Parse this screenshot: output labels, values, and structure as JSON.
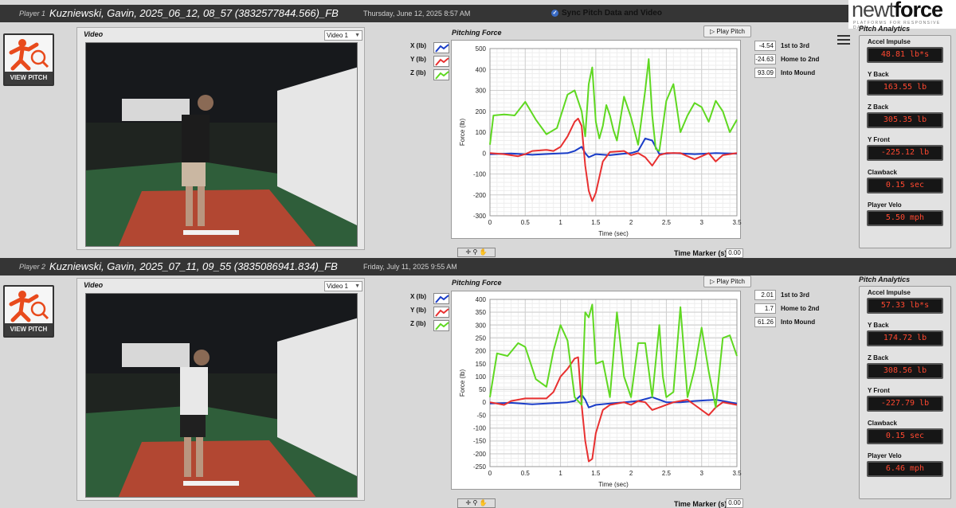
{
  "header": {
    "sync_label": "Sync Pitch Data and Video",
    "logo_text_a": "newt",
    "logo_text_b": "force",
    "logo_sub": "PLATFORMS FOR RESPONSIVE DATA"
  },
  "players": [
    {
      "player_label": "Player 1",
      "name": "Kuzniewski, Gavin, 2025_06_12, 08_57 (3832577844.566)_FB",
      "date": "Thursday, June 12, 2025 8:57 AM",
      "view_pitch": "VIEW PITCH",
      "video_title": "Video",
      "video_select": "Video 1",
      "chart_title": "Pitching Force",
      "play_pitch": "Play Pitch",
      "legend": [
        {
          "label": "X (lb)",
          "color": "#1a3dc8"
        },
        {
          "label": "Y (lb)",
          "color": "#e83030"
        },
        {
          "label": "Z (lb)",
          "color": "#5fd821"
        }
      ],
      "time_marker_label": "Time Marker (s)",
      "time_marker": "0.00",
      "readings": [
        {
          "value": "-4.54",
          "label": "1st to 3rd"
        },
        {
          "value": "-24.63",
          "label": "Home to 2nd"
        },
        {
          "value": "93.09",
          "label": "Into Mound"
        }
      ],
      "analytics_title": "Pitch Analytics",
      "analytics": [
        {
          "name": "Accel Impulse",
          "value": "48.81 lb*s"
        },
        {
          "name": "Y Back",
          "value": "163.55 lb"
        },
        {
          "name": "Z Back",
          "value": "305.35 lb"
        },
        {
          "name": "Y Front",
          "value": "-225.12 lb"
        },
        {
          "name": "Clawback",
          "value": "0.15 sec"
        },
        {
          "name": "Player Velo",
          "value": "5.50 mph"
        }
      ]
    },
    {
      "player_label": "Player 2",
      "name": "Kuzniewski, Gavin, 2025_07_11, 09_55 (3835086941.834)_FB",
      "date": "Friday, July 11, 2025 9:55 AM",
      "view_pitch": "VIEW PITCH",
      "video_title": "Video",
      "video_select": "Video 1",
      "chart_title": "Pitching Force",
      "play_pitch": "Play Pitch",
      "legend": [
        {
          "label": "X (lb)",
          "color": "#1a3dc8"
        },
        {
          "label": "Y (lb)",
          "color": "#e83030"
        },
        {
          "label": "Z (lb)",
          "color": "#5fd821"
        }
      ],
      "time_marker_label": "Time Marker (s)",
      "time_marker": "0.00",
      "readings": [
        {
          "value": "2.01",
          "label": "1st to 3rd"
        },
        {
          "value": "1.7",
          "label": "Home to 2nd"
        },
        {
          "value": "61.26",
          "label": "Into Mound"
        }
      ],
      "analytics_title": "Pitch Analytics",
      "analytics": [
        {
          "name": "Accel Impulse",
          "value": "57.33 lb*s"
        },
        {
          "name": "Y Back",
          "value": "174.72 lb"
        },
        {
          "name": "Z Back",
          "value": "308.56 lb"
        },
        {
          "name": "Y Front",
          "value": "-227.79 lb"
        },
        {
          "name": "Clawback",
          "value": "0.15 sec"
        },
        {
          "name": "Player Velo",
          "value": "6.46 mph"
        }
      ]
    }
  ],
  "chart_data": [
    {
      "type": "line",
      "title": "Pitching Force",
      "xlabel": "Time (sec)",
      "ylabel": "Force (lb)",
      "xlim": [
        0,
        3.5
      ],
      "ylim": [
        -300,
        500
      ],
      "xticks": [
        0,
        0.5,
        1,
        1.5,
        2,
        2.5,
        3,
        3.5
      ],
      "yticks": [
        -300,
        -200,
        -100,
        0,
        100,
        200,
        300,
        400,
        500
      ],
      "grid": true,
      "series": [
        {
          "name": "X (lb)",
          "color": "#1a3dc8",
          "x": [
            0,
            0.3,
            0.6,
            0.9,
            1.1,
            1.2,
            1.3,
            1.35,
            1.4,
            1.5,
            1.7,
            1.9,
            2.0,
            2.1,
            2.2,
            2.3,
            2.4,
            2.6,
            2.9,
            3.2,
            3.5
          ],
          "y": [
            -5,
            -2,
            -8,
            -3,
            0,
            10,
            30,
            0,
            -20,
            -5,
            -10,
            -3,
            0,
            10,
            70,
            60,
            -5,
            0,
            -5,
            0,
            -3
          ]
        },
        {
          "name": "Y (lb)",
          "color": "#e83030",
          "x": [
            0,
            0.2,
            0.4,
            0.5,
            0.6,
            0.8,
            0.9,
            1.0,
            1.1,
            1.2,
            1.25,
            1.3,
            1.35,
            1.4,
            1.45,
            1.5,
            1.6,
            1.7,
            1.9,
            2.0,
            2.1,
            2.2,
            2.3,
            2.4,
            2.5,
            2.7,
            2.9,
            3.1,
            3.2,
            3.3,
            3.5
          ],
          "y": [
            0,
            -5,
            -15,
            -5,
            10,
            15,
            10,
            30,
            80,
            150,
            165,
            130,
            -60,
            -180,
            -230,
            -190,
            -40,
            5,
            10,
            -10,
            0,
            -20,
            -60,
            -10,
            0,
            0,
            -30,
            0,
            -40,
            -10,
            0
          ]
        },
        {
          "name": "Z (lb)",
          "color": "#5fd821",
          "x": [
            0,
            0.05,
            0.2,
            0.35,
            0.5,
            0.65,
            0.8,
            0.95,
            1.1,
            1.2,
            1.3,
            1.35,
            1.4,
            1.45,
            1.5,
            1.55,
            1.6,
            1.65,
            1.7,
            1.75,
            1.8,
            1.9,
            2.0,
            2.1,
            2.2,
            2.25,
            2.3,
            2.35,
            2.4,
            2.5,
            2.6,
            2.7,
            2.8,
            2.9,
            3.0,
            3.1,
            3.2,
            3.3,
            3.4,
            3.5
          ],
          "y": [
            40,
            180,
            185,
            180,
            245,
            160,
            90,
            120,
            280,
            300,
            200,
            80,
            330,
            410,
            150,
            70,
            130,
            230,
            180,
            110,
            60,
            270,
            170,
            40,
            300,
            450,
            180,
            20,
            10,
            250,
            330,
            100,
            180,
            240,
            220,
            150,
            250,
            200,
            100,
            160
          ]
        }
      ]
    },
    {
      "type": "line",
      "title": "Pitching Force",
      "xlabel": "Time (sec)",
      "ylabel": "Force (lb)",
      "xlim": [
        0,
        3.5
      ],
      "ylim": [
        -250,
        400
      ],
      "xticks": [
        0,
        0.5,
        1,
        1.5,
        2,
        2.5,
        3,
        3.5
      ],
      "yticks": [
        -250,
        -200,
        -150,
        -100,
        -50,
        0,
        50,
        100,
        150,
        200,
        250,
        300,
        350,
        400
      ],
      "grid": true,
      "series": [
        {
          "name": "X (lb)",
          "color": "#1a3dc8",
          "x": [
            0,
            0.3,
            0.6,
            0.9,
            1.1,
            1.2,
            1.3,
            1.35,
            1.4,
            1.5,
            1.7,
            1.9,
            2.1,
            2.3,
            2.5,
            2.7,
            2.9,
            3.2,
            3.5
          ],
          "y": [
            -5,
            -2,
            -8,
            -3,
            0,
            5,
            30,
            10,
            -20,
            -10,
            -5,
            0,
            5,
            20,
            0,
            0,
            5,
            10,
            -5
          ]
        },
        {
          "name": "Y (lb)",
          "color": "#e83030",
          "x": [
            0,
            0.2,
            0.3,
            0.5,
            0.8,
            0.9,
            1.0,
            1.1,
            1.2,
            1.25,
            1.3,
            1.35,
            1.4,
            1.45,
            1.5,
            1.6,
            1.7,
            1.9,
            2.0,
            2.1,
            2.2,
            2.3,
            2.4,
            2.6,
            2.8,
            2.9,
            3.0,
            3.1,
            3.2,
            3.3,
            3.5
          ],
          "y": [
            0,
            -10,
            5,
            15,
            15,
            40,
            100,
            130,
            170,
            175,
            -10,
            -150,
            -230,
            -220,
            -120,
            -30,
            -10,
            0,
            -10,
            5,
            0,
            -30,
            -20,
            0,
            10,
            -10,
            -30,
            -50,
            -20,
            0,
            -10
          ]
        },
        {
          "name": "Z (lb)",
          "color": "#5fd821",
          "x": [
            0,
            0.1,
            0.25,
            0.4,
            0.5,
            0.65,
            0.8,
            0.9,
            1.0,
            1.1,
            1.2,
            1.3,
            1.35,
            1.4,
            1.45,
            1.5,
            1.6,
            1.7,
            1.8,
            1.9,
            2.0,
            2.1,
            2.2,
            2.3,
            2.4,
            2.45,
            2.5,
            2.6,
            2.7,
            2.8,
            2.9,
            3.0,
            3.1,
            3.2,
            3.3,
            3.4,
            3.5
          ],
          "y": [
            20,
            190,
            180,
            230,
            215,
            90,
            60,
            200,
            300,
            240,
            20,
            -10,
            350,
            330,
            380,
            150,
            160,
            20,
            350,
            100,
            20,
            230,
            230,
            20,
            300,
            100,
            20,
            40,
            370,
            20,
            130,
            290,
            120,
            -20,
            250,
            260,
            180
          ]
        }
      ]
    }
  ]
}
